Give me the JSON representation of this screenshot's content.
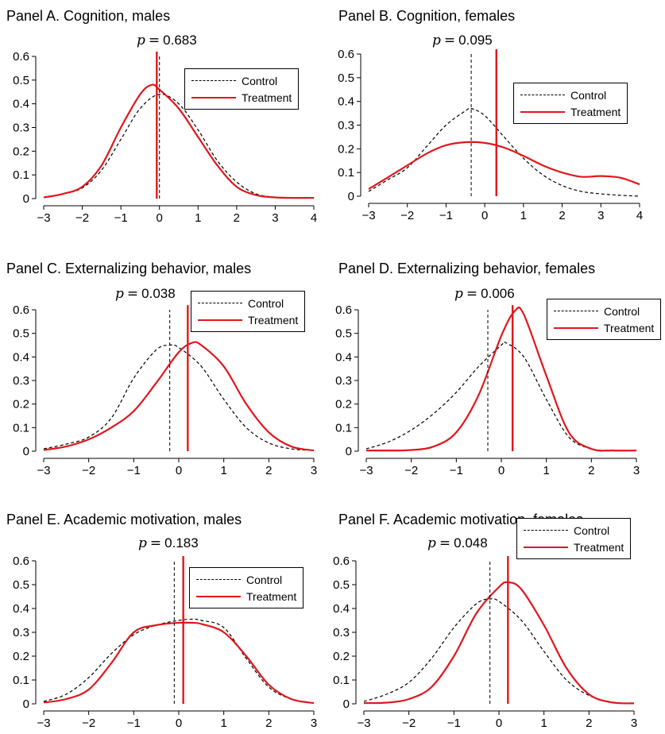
{
  "colors": {
    "control": "#000000",
    "treatment": "#e0171d"
  },
  "legend_labels": [
    "Control",
    "Treatment"
  ],
  "chart_data": [
    {
      "type": "line",
      "title": "Panel A. Cognition, males",
      "p_symbol": "p",
      "p_value": "0.683",
      "xlim": [
        -3,
        4
      ],
      "ylim": [
        0,
        0.6
      ],
      "xticks": [
        -3,
        -2,
        -1,
        0,
        1,
        2,
        3,
        4
      ],
      "yticks": [
        0,
        0.1,
        0.2,
        0.3,
        0.4,
        0.5,
        0.6
      ],
      "control_mean": 0.0,
      "treatment_mean": -0.07,
      "series": [
        {
          "name": "Control",
          "x": [
            -3,
            -2.5,
            -2,
            -1.5,
            -1,
            -0.5,
            0,
            0.5,
            1,
            1.5,
            2,
            2.5,
            3,
            3.5,
            4
          ],
          "values": [
            0.005,
            0.02,
            0.045,
            0.12,
            0.25,
            0.38,
            0.44,
            0.4,
            0.29,
            0.16,
            0.07,
            0.02,
            0.006,
            0.003,
            0.003
          ]
        },
        {
          "name": "Treatment",
          "x": [
            -3,
            -2.5,
            -2,
            -1.5,
            -1,
            -0.5,
            -0.2,
            0,
            0.5,
            1,
            1.5,
            2,
            2.5,
            3,
            3.5,
            4
          ],
          "values": [
            0.005,
            0.02,
            0.05,
            0.14,
            0.3,
            0.44,
            0.48,
            0.46,
            0.38,
            0.26,
            0.14,
            0.05,
            0.015,
            0.005,
            0.003,
            0.003
          ]
        }
      ]
    },
    {
      "type": "line",
      "title": "Panel B. Cognition, females",
      "p_symbol": "p",
      "p_value": "0.095",
      "xlim": [
        -3,
        4
      ],
      "ylim": [
        0,
        0.6
      ],
      "xticks": [
        -3,
        -2,
        -1,
        0,
        1,
        2,
        3,
        4
      ],
      "yticks": [
        0,
        0.1,
        0.2,
        0.3,
        0.4,
        0.5,
        0.6
      ],
      "control_mean": -0.35,
      "treatment_mean": 0.3,
      "series": [
        {
          "name": "Control",
          "x": [
            -3,
            -2.5,
            -2,
            -1.5,
            -1,
            -0.5,
            -0.35,
            0,
            0.5,
            1,
            1.5,
            2,
            2.5,
            3,
            3.5,
            4
          ],
          "values": [
            0.02,
            0.07,
            0.12,
            0.21,
            0.3,
            0.36,
            0.37,
            0.34,
            0.25,
            0.16,
            0.09,
            0.045,
            0.02,
            0.01,
            0.004,
            0.0
          ]
        },
        {
          "name": "Treatment",
          "x": [
            -3,
            -2.5,
            -2,
            -1.5,
            -1,
            -0.5,
            0,
            0.5,
            1,
            1.5,
            2,
            2.5,
            3,
            3.5,
            4
          ],
          "values": [
            0.03,
            0.08,
            0.13,
            0.18,
            0.215,
            0.228,
            0.225,
            0.205,
            0.17,
            0.13,
            0.1,
            0.082,
            0.085,
            0.078,
            0.05
          ]
        }
      ]
    },
    {
      "type": "line",
      "title": "Panel C. Externalizing behavior, males",
      "p_symbol": "p",
      "p_value": "0.038",
      "xlim": [
        -3,
        3
      ],
      "ylim": [
        0,
        0.6
      ],
      "xticks": [
        -3,
        -2,
        -1,
        0,
        1,
        2,
        3
      ],
      "yticks": [
        0,
        0.1,
        0.2,
        0.3,
        0.4,
        0.5,
        0.6
      ],
      "control_mean": -0.2,
      "treatment_mean": 0.2,
      "series": [
        {
          "name": "Control",
          "x": [
            -3,
            -2.5,
            -2,
            -1.5,
            -1,
            -0.5,
            -0.2,
            0,
            0.5,
            1,
            1.5,
            2,
            2.5,
            3
          ],
          "values": [
            0.01,
            0.03,
            0.06,
            0.14,
            0.31,
            0.43,
            0.45,
            0.44,
            0.36,
            0.22,
            0.1,
            0.035,
            0.01,
            0.003
          ]
        },
        {
          "name": "Treatment",
          "x": [
            -3,
            -2.5,
            -2,
            -1.5,
            -1,
            -0.5,
            0,
            0.3,
            0.5,
            1,
            1.5,
            2,
            2.5,
            3
          ],
          "values": [
            0.005,
            0.02,
            0.05,
            0.1,
            0.17,
            0.29,
            0.42,
            0.46,
            0.45,
            0.36,
            0.2,
            0.08,
            0.02,
            0.003
          ]
        }
      ]
    },
    {
      "type": "line",
      "title": "Panel D. Externalizing behavior, females",
      "p_symbol": "p",
      "p_value": "0.006",
      "xlim": [
        -3,
        3
      ],
      "ylim": [
        0,
        0.6
      ],
      "xticks": [
        -3,
        -2,
        -1,
        0,
        1,
        2,
        3
      ],
      "yticks": [
        0,
        0.1,
        0.2,
        0.3,
        0.4,
        0.5,
        0.6
      ],
      "control_mean": -0.3,
      "treatment_mean": 0.25,
      "series": [
        {
          "name": "Control",
          "x": [
            -3,
            -2.5,
            -2,
            -1.5,
            -1,
            -0.5,
            0,
            0.1,
            0.5,
            1,
            1.5,
            2,
            2.5,
            3
          ],
          "values": [
            0.01,
            0.04,
            0.09,
            0.16,
            0.25,
            0.36,
            0.45,
            0.46,
            0.4,
            0.22,
            0.06,
            0.01,
            0.003,
            0.002
          ]
        },
        {
          "name": "Treatment",
          "x": [
            -3,
            -2.5,
            -2,
            -1.5,
            -1,
            -0.5,
            0,
            0.3,
            0.5,
            1,
            1.5,
            2,
            2.5,
            3
          ],
          "values": [
            0.003,
            0.003,
            0.005,
            0.02,
            0.08,
            0.24,
            0.49,
            0.595,
            0.58,
            0.32,
            0.08,
            0.01,
            0.003,
            0.003
          ]
        }
      ]
    },
    {
      "type": "line",
      "title": "Panel E. Academic motivation, males",
      "p_symbol": "p",
      "p_value": "0.183",
      "xlim": [
        -3,
        3
      ],
      "ylim": [
        0,
        0.6
      ],
      "xticks": [
        -3,
        -2,
        -1,
        0,
        1,
        2,
        3
      ],
      "yticks": [
        0,
        0.1,
        0.2,
        0.3,
        0.4,
        0.5,
        0.6
      ],
      "control_mean": -0.1,
      "treatment_mean": 0.1,
      "series": [
        {
          "name": "Control",
          "x": [
            -3,
            -2.5,
            -2,
            -1.5,
            -1,
            -0.5,
            0,
            0.3,
            0.5,
            1,
            1.5,
            2,
            2.5,
            3
          ],
          "values": [
            0.01,
            0.04,
            0.11,
            0.21,
            0.29,
            0.33,
            0.35,
            0.355,
            0.35,
            0.32,
            0.19,
            0.07,
            0.02,
            0.003
          ]
        },
        {
          "name": "Treatment",
          "x": [
            -3,
            -2.5,
            -2,
            -1.5,
            -1,
            -0.5,
            0,
            0.3,
            0.5,
            1,
            1.5,
            2,
            2.5,
            3
          ],
          "values": [
            0.005,
            0.02,
            0.06,
            0.17,
            0.3,
            0.33,
            0.34,
            0.34,
            0.335,
            0.3,
            0.2,
            0.08,
            0.02,
            0.003
          ]
        }
      ]
    },
    {
      "type": "line",
      "title": "Panel F. Academic motivation, females",
      "p_symbol": "p",
      "p_value": "0.048",
      "xlim": [
        -3,
        3
      ],
      "ylim": [
        0,
        0.6
      ],
      "xticks": [
        -3,
        -2,
        -1,
        0,
        1,
        2,
        3
      ],
      "yticks": [
        0,
        0.1,
        0.2,
        0.3,
        0.4,
        0.5,
        0.6
      ],
      "control_mean": -0.2,
      "treatment_mean": 0.2,
      "series": [
        {
          "name": "Control",
          "x": [
            -3,
            -2.5,
            -2,
            -1.5,
            -1,
            -0.5,
            -0.2,
            0,
            0.5,
            1,
            1.5,
            2,
            2.5,
            3
          ],
          "values": [
            0.01,
            0.04,
            0.09,
            0.19,
            0.32,
            0.42,
            0.44,
            0.43,
            0.35,
            0.22,
            0.1,
            0.035,
            0.008,
            0.002
          ]
        },
        {
          "name": "Treatment",
          "x": [
            -3,
            -2.5,
            -2,
            -1.5,
            -1,
            -0.5,
            0,
            0.2,
            0.5,
            1,
            1.5,
            2,
            2.5,
            3
          ],
          "values": [
            0.003,
            0.005,
            0.02,
            0.07,
            0.2,
            0.38,
            0.49,
            0.51,
            0.48,
            0.33,
            0.15,
            0.04,
            0.006,
            0.002
          ]
        }
      ]
    }
  ]
}
